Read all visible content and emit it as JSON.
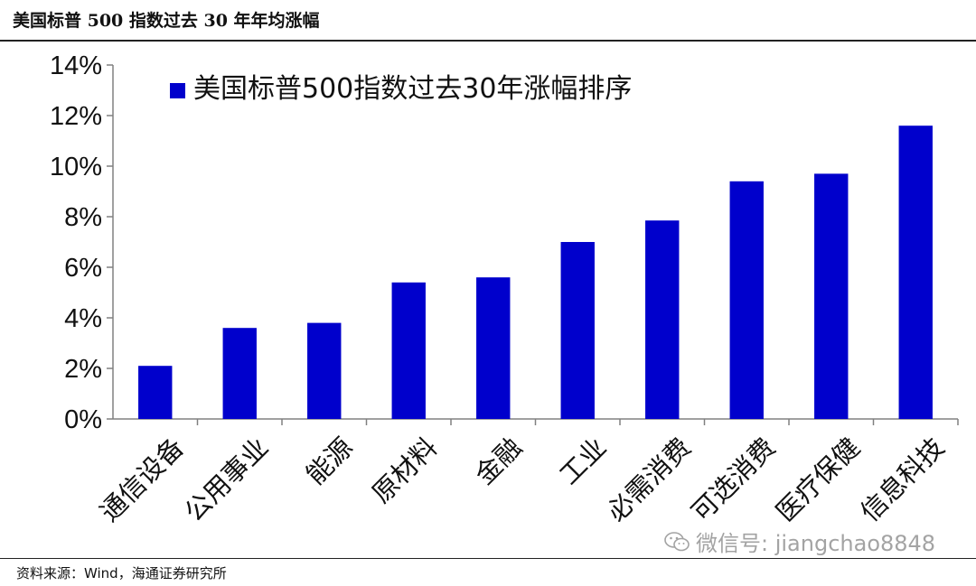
{
  "figure_title": "美国标普 500 指数过去 30 年年均涨幅",
  "source": "资料来源：Wind，海通证券研究所",
  "watermark": {
    "text": "微信号: jiangchao8848",
    "icon": "wechat-icon"
  },
  "colors": {
    "bar": "#0000CC",
    "axis": "#808080",
    "text": "#111111"
  },
  "chart_data": {
    "type": "bar",
    "title": "",
    "xlabel": "",
    "ylabel": "",
    "categories": [
      "通信设备",
      "公用事业",
      "能源",
      "原材料",
      "金融",
      "工业",
      "必需消费",
      "可选消费",
      "医疗保健",
      "信息科技"
    ],
    "series": [
      {
        "name": "美国标普500指数过去30年涨幅排序",
        "values": [
          2.1,
          3.6,
          3.8,
          5.4,
          5.6,
          7.0,
          7.85,
          9.4,
          9.7,
          11.6
        ]
      }
    ],
    "ylim": [
      0,
      14
    ],
    "yticks": [
      "0%",
      "2%",
      "4%",
      "6%",
      "8%",
      "10%",
      "12%",
      "14%"
    ],
    "grid": false,
    "legend": "top-left"
  }
}
